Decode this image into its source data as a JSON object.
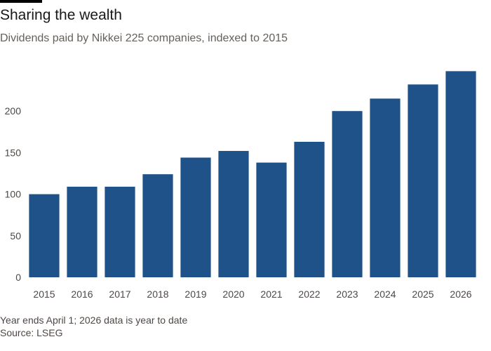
{
  "header": {
    "title": "Sharing the wealth",
    "subtitle": "Dividends paid by Nikkei 225 companies, indexed to 2015"
  },
  "footer": {
    "note": "Year ends April 1; 2026 data is year to date",
    "source": "Source: LSEG"
  },
  "colors": {
    "bar": "#1e5288",
    "accent": "#000000",
    "gridline": "#e5e0dc"
  },
  "chart_data": {
    "type": "bar",
    "title": "Sharing the wealth",
    "subtitle": "Dividends paid by Nikkei 225 companies, indexed to 2015",
    "xlabel": "",
    "ylabel": "",
    "categories": [
      "2015",
      "2016",
      "2017",
      "2018",
      "2019",
      "2020",
      "2021",
      "2022",
      "2023",
      "2024",
      "2025",
      "2026"
    ],
    "values": [
      100,
      109,
      109,
      124,
      144,
      152,
      138,
      163,
      200,
      215,
      232,
      248
    ],
    "ylim": [
      0,
      250
    ],
    "yticks": [
      0,
      50,
      100,
      150,
      200
    ],
    "grid": false,
    "legend": "none"
  }
}
